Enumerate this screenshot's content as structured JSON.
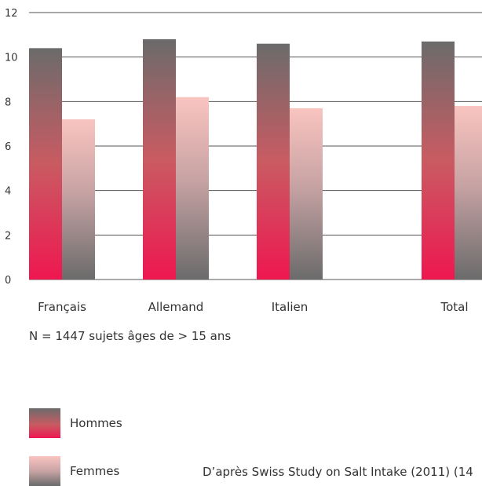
{
  "chart_data": {
    "type": "bar",
    "categories": [
      "Français",
      "Allemand",
      "Italien",
      "Total"
    ],
    "series": [
      {
        "name": "Hommes",
        "values": [
          10.4,
          10.8,
          10.6,
          10.7
        ]
      },
      {
        "name": "Femmes",
        "values": [
          7.2,
          8.2,
          7.7,
          7.8
        ]
      }
    ],
    "y_ticks": [
      "0",
      "2",
      "4",
      "6",
      "8",
      "10",
      "12"
    ],
    "ylim": [
      0,
      12
    ],
    "grid": true,
    "colors": {
      "hommes_top": "#6b6b6b",
      "hommes_bottom": "#e8174c",
      "femmes_top": "#f9c4c0",
      "femmes_bottom": "#6b6b6b",
      "grid": "#555555"
    }
  },
  "note": "N = 1447 sujets âges de > 15 ans",
  "legend": {
    "hommes": "Hommes",
    "femmes": "Femmes"
  },
  "source": "D’après Swiss Study on Salt Intake (2011) (14"
}
